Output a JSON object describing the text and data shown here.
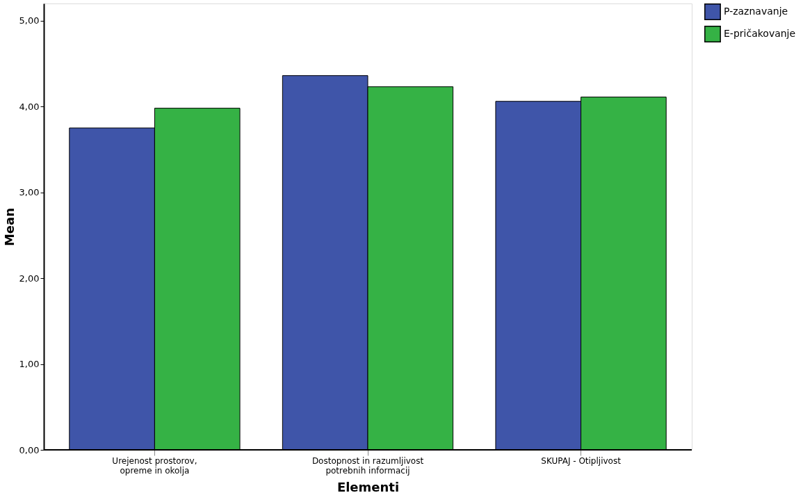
{
  "chart_data": {
    "type": "bar",
    "xlabel": "Elementi",
    "ylabel": "Mean",
    "categories": [
      "Urejenost prostorov,\nopreme in okolja",
      "Dostopnost in razumljivost\npotrebnih informacij",
      "SKUPAJ - Otipljivost"
    ],
    "series": [
      {
        "name": "P-zaznavanje",
        "color": "#3f55a9",
        "values": [
          3.75,
          4.36,
          4.06
        ]
      },
      {
        "name": "E-pričakovanje",
        "color": "#35b245",
        "values": [
          3.98,
          4.23,
          4.11
        ]
      }
    ],
    "ylim": [
      0,
      5.2
    ],
    "yticks": [
      {
        "value": 0,
        "label": "0,00"
      },
      {
        "value": 1,
        "label": "1,00"
      },
      {
        "value": 2,
        "label": "2,00"
      },
      {
        "value": 3,
        "label": "3,00"
      },
      {
        "value": 4,
        "label": "4,00"
      },
      {
        "value": 5,
        "label": "5,00"
      }
    ],
    "grid": false,
    "legend": "top right"
  }
}
